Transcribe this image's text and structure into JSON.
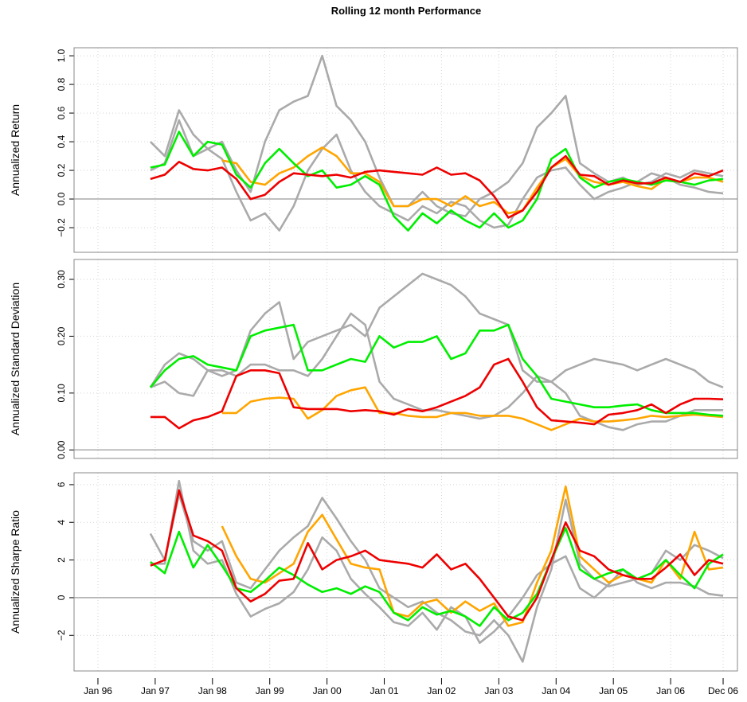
{
  "chart_data": {
    "type": "line",
    "title": "Rolling 12 month Performance",
    "x": [
      "1996-12",
      "1997-03",
      "1997-06",
      "1997-09",
      "1997-12",
      "1998-03",
      "1998-06",
      "1998-09",
      "1998-12",
      "1999-03",
      "1999-06",
      "1999-09",
      "1999-12",
      "2000-03",
      "2000-06",
      "2000-09",
      "2000-12",
      "2001-03",
      "2001-06",
      "2001-09",
      "2001-12",
      "2002-03",
      "2002-06",
      "2002-09",
      "2002-12",
      "2003-03",
      "2003-06",
      "2003-09",
      "2003-12",
      "2004-03",
      "2004-06",
      "2004-09",
      "2004-12",
      "2005-03",
      "2005-06",
      "2005-09",
      "2005-12",
      "2006-03",
      "2006-06",
      "2006-09",
      "2006-12"
    ],
    "xlim": [
      "1995-08",
      "2007-03"
    ],
    "xticks": [
      {
        "value": "1996-01",
        "label": "Jan 96"
      },
      {
        "value": "1997-01",
        "label": "Jan 97"
      },
      {
        "value": "1998-01",
        "label": "Jan 98"
      },
      {
        "value": "1999-01",
        "label": "Jan 99"
      },
      {
        "value": "2000-01",
        "label": "Jan 00"
      },
      {
        "value": "2001-01",
        "label": "Jan 01"
      },
      {
        "value": "2002-01",
        "label": "Jan 02"
      },
      {
        "value": "2003-01",
        "label": "Jan 03"
      },
      {
        "value": "2004-01",
        "label": "Jan 04"
      },
      {
        "value": "2005-01",
        "label": "Jan 05"
      },
      {
        "value": "2006-01",
        "label": "Jan 06"
      },
      {
        "value": "2006-12",
        "label": "Dec 06"
      }
    ],
    "grid": true,
    "panels": [
      {
        "ylabel": "Annualized Return",
        "ylim": [
          -0.372,
          1.056
        ],
        "yticks": [
          {
            "value": -0.2,
            "label": "−0.2"
          },
          {
            "value": 0,
            "label": "0.0"
          },
          0.2,
          0.4,
          0.6,
          0.8,
          {
            "value": 1,
            "label": "1.0"
          }
        ],
        "series": [
          {
            "color": "#aaaaaa",
            "values": [
              0.4,
              0.3,
              0.62,
              0.45,
              0.35,
              0.4,
              0.2,
              0.05,
              0.4,
              0.62,
              0.68,
              0.72,
              1.0,
              0.65,
              0.55,
              0.4,
              0.15,
              -0.05,
              -0.05,
              0.05,
              -0.05,
              -0.1,
              -0.12,
              0.0,
              0.05,
              0.12,
              0.25,
              0.5,
              0.6,
              0.72,
              0.25,
              0.18,
              0.12,
              0.15,
              0.1,
              0.12,
              0.18,
              0.15,
              0.2,
              0.18,
              0.16
            ]
          },
          {
            "color": "#aaaaaa",
            "values": [
              0.2,
              0.25,
              0.55,
              0.3,
              0.35,
              0.28,
              0.05,
              -0.15,
              -0.1,
              -0.22,
              -0.05,
              0.2,
              0.35,
              0.45,
              0.2,
              0.05,
              -0.05,
              -0.1,
              -0.15,
              -0.05,
              -0.1,
              -0.02,
              -0.05,
              -0.15,
              -0.2,
              -0.18,
              0.0,
              0.15,
              0.2,
              0.22,
              0.1,
              0.0,
              0.05,
              0.08,
              0.12,
              0.18,
              0.15,
              0.1,
              0.08,
              0.05,
              0.04
            ]
          },
          {
            "color": "#ffa500",
            "values": [
              null,
              null,
              null,
              null,
              null,
              0.27,
              0.25,
              0.12,
              0.1,
              0.18,
              0.22,
              0.3,
              0.36,
              0.3,
              0.18,
              0.18,
              0.12,
              -0.05,
              -0.05,
              0.0,
              0.0,
              -0.05,
              0.02,
              -0.05,
              -0.02,
              -0.1,
              -0.08,
              0.08,
              0.22,
              0.28,
              0.16,
              0.12,
              0.1,
              0.12,
              0.09,
              0.07,
              0.14,
              0.12,
              0.15,
              0.15,
              0.12
            ]
          },
          {
            "color": "#00ee00",
            "values": [
              0.22,
              0.24,
              0.47,
              0.3,
              0.4,
              0.38,
              0.17,
              0.08,
              0.25,
              0.35,
              0.25,
              0.16,
              0.2,
              0.08,
              0.1,
              0.16,
              0.1,
              -0.12,
              -0.22,
              -0.1,
              -0.17,
              -0.08,
              -0.15,
              -0.2,
              -0.1,
              -0.2,
              -0.15,
              0.0,
              0.28,
              0.35,
              0.15,
              0.08,
              0.12,
              0.14,
              0.12,
              0.1,
              0.13,
              0.12,
              0.1,
              0.13,
              0.14
            ]
          },
          {
            "color": "#ee0000",
            "values": [
              0.14,
              0.17,
              0.26,
              0.21,
              0.2,
              0.22,
              0.14,
              0.0,
              0.03,
              0.12,
              0.18,
              0.17,
              0.16,
              0.17,
              0.15,
              0.19,
              0.2,
              0.19,
              0.18,
              0.17,
              0.22,
              0.17,
              0.18,
              0.13,
              0.02,
              -0.13,
              -0.08,
              0.05,
              0.22,
              0.3,
              0.17,
              0.16,
              0.1,
              0.13,
              0.11,
              0.11,
              0.15,
              0.12,
              0.18,
              0.16,
              0.2
            ]
          }
        ]
      },
      {
        "ylabel": "Annualized Standard Deviation",
        "ylim": [
          -0.015,
          0.335
        ],
        "yticks": [
          {
            "value": 0,
            "label": "0.00"
          },
          {
            "value": 0.1,
            "label": "0.10"
          },
          {
            "value": 0.2,
            "label": "0.20"
          },
          {
            "value": 0.3,
            "label": "0.30"
          }
        ],
        "series": [
          {
            "color": "#aaaaaa",
            "values": [
              0.11,
              0.15,
              0.17,
              0.16,
              0.14,
              0.13,
              0.14,
              0.21,
              0.24,
              0.26,
              0.16,
              0.19,
              0.2,
              0.21,
              0.22,
              0.2,
              0.25,
              0.27,
              0.29,
              0.31,
              0.3,
              0.29,
              0.27,
              0.24,
              0.23,
              0.22,
              0.14,
              0.12,
              0.12,
              0.14,
              0.15,
              0.16,
              0.155,
              0.15,
              0.14,
              0.15,
              0.16,
              0.15,
              0.14,
              0.12,
              0.11
            ]
          },
          {
            "color": "#aaaaaa",
            "values": [
              0.11,
              0.12,
              0.1,
              0.095,
              0.14,
              0.14,
              0.13,
              0.15,
              0.15,
              0.14,
              0.14,
              0.13,
              0.16,
              0.2,
              0.24,
              0.22,
              0.12,
              0.09,
              0.08,
              0.07,
              0.07,
              0.065,
              0.06,
              0.055,
              0.06,
              0.075,
              0.1,
              0.13,
              0.12,
              0.1,
              0.06,
              0.05,
              0.04,
              0.035,
              0.045,
              0.05,
              0.05,
              0.06,
              0.07,
              0.07,
              0.07
            ]
          },
          {
            "color": "#ffa500",
            "values": [
              null,
              null,
              null,
              null,
              null,
              0.065,
              0.065,
              0.085,
              0.09,
              0.092,
              0.09,
              0.055,
              0.07,
              0.095,
              0.105,
              0.11,
              0.065,
              0.065,
              0.06,
              0.058,
              0.058,
              0.065,
              0.065,
              0.06,
              0.06,
              0.06,
              0.055,
              0.045,
              0.035,
              0.045,
              0.055,
              0.05,
              0.05,
              0.052,
              0.055,
              0.06,
              0.058,
              0.06,
              0.062,
              0.06,
              0.058
            ]
          },
          {
            "color": "#00ee00",
            "values": [
              0.11,
              0.14,
              0.16,
              0.165,
              0.15,
              0.145,
              0.14,
              0.2,
              0.21,
              0.215,
              0.22,
              0.14,
              0.14,
              0.15,
              0.16,
              0.155,
              0.2,
              0.18,
              0.19,
              0.19,
              0.2,
              0.16,
              0.17,
              0.21,
              0.21,
              0.22,
              0.16,
              0.13,
              0.09,
              0.085,
              0.08,
              0.075,
              0.075,
              0.078,
              0.08,
              0.07,
              0.065,
              0.065,
              0.065,
              0.062,
              0.06
            ]
          },
          {
            "color": "#ee0000",
            "values": [
              0.058,
              0.058,
              0.038,
              0.052,
              0.058,
              0.068,
              0.13,
              0.14,
              0.14,
              0.135,
              0.075,
              0.072,
              0.072,
              0.072,
              0.068,
              0.07,
              0.068,
              0.062,
              0.072,
              0.068,
              0.075,
              0.085,
              0.095,
              0.11,
              0.15,
              0.16,
              0.12,
              0.075,
              0.052,
              0.05,
              0.048,
              0.045,
              0.062,
              0.065,
              0.07,
              0.08,
              0.065,
              0.08,
              0.09,
              0.09,
              0.089
            ]
          }
        ]
      },
      {
        "ylabel": "Annualized Sharpe Ratio",
        "ylim": [
          -3.89,
          6.63
        ],
        "yticks": [
          {
            "value": -2,
            "label": "−2"
          },
          0,
          2,
          4,
          6
        ],
        "series": [
          {
            "color": "#aaaaaa",
            "values": [
              3.4,
              2.0,
              5.5,
              3.0,
              2.5,
              3.0,
              0.8,
              0.5,
              1.5,
              2.5,
              3.2,
              3.8,
              5.3,
              4.2,
              3.0,
              2.0,
              0.5,
              0.0,
              -0.5,
              -0.2,
              -0.8,
              -1.2,
              -1.8,
              -2.0,
              -1.2,
              -2.0,
              -3.4,
              -0.5,
              1.5,
              5.2,
              1.8,
              1.0,
              0.6,
              0.8,
              1.0,
              1.3,
              2.5,
              2.0,
              2.8,
              2.5,
              2.1
            ]
          },
          {
            "color": "#aaaaaa",
            "values": [
              1.8,
              1.8,
              6.2,
              2.5,
              1.8,
              2.0,
              0.2,
              -1.0,
              -0.6,
              -0.3,
              0.3,
              1.5,
              3.2,
              2.5,
              1.0,
              0.2,
              -0.5,
              -1.3,
              -1.5,
              -0.8,
              -1.7,
              -0.5,
              -1.0,
              -2.4,
              -1.8,
              -1.0,
              0.0,
              1.2,
              1.8,
              2.2,
              0.5,
              0.0,
              0.7,
              1.5,
              0.8,
              0.5,
              0.8,
              0.8,
              0.6,
              0.2,
              0.1
            ]
          },
          {
            "color": "#ffa500",
            "values": [
              null,
              null,
              null,
              null,
              null,
              3.8,
              2.2,
              1.0,
              0.8,
              1.3,
              1.8,
              3.5,
              4.4,
              3.1,
              1.8,
              1.6,
              1.5,
              -0.8,
              -1.0,
              -0.3,
              -0.1,
              -0.8,
              -0.2,
              -0.7,
              -0.3,
              -1.5,
              -1.3,
              0.8,
              2.5,
              5.9,
              2.2,
              1.5,
              0.8,
              1.2,
              1.0,
              0.8,
              2.0,
              1.0,
              3.5,
              1.5,
              1.6
            ]
          },
          {
            "color": "#00ee00",
            "values": [
              1.9,
              1.3,
              3.5,
              1.6,
              2.8,
              1.7,
              0.5,
              0.3,
              0.9,
              1.6,
              1.2,
              0.7,
              0.3,
              0.5,
              0.2,
              0.6,
              0.3,
              -0.8,
              -1.2,
              -0.5,
              -0.9,
              -0.7,
              -1.0,
              -1.5,
              -0.5,
              -1.2,
              -0.8,
              0.2,
              2.0,
              3.7,
              1.5,
              1.0,
              1.3,
              1.5,
              1.0,
              1.3,
              2.0,
              1.2,
              0.5,
              1.8,
              2.3
            ]
          },
          {
            "color": "#ee0000",
            "values": [
              1.7,
              2.0,
              5.7,
              3.3,
              3.0,
              2.5,
              0.5,
              -0.2,
              0.2,
              0.9,
              1.0,
              2.9,
              1.5,
              2.0,
              2.2,
              2.5,
              2.0,
              1.9,
              1.8,
              1.6,
              2.3,
              1.5,
              1.8,
              1.0,
              0.0,
              -1.0,
              -1.2,
              0.0,
              2.0,
              4.0,
              2.5,
              2.2,
              1.5,
              1.2,
              1.0,
              1.0,
              1.6,
              2.3,
              1.2,
              2.0,
              1.8
            ]
          }
        ]
      }
    ]
  }
}
